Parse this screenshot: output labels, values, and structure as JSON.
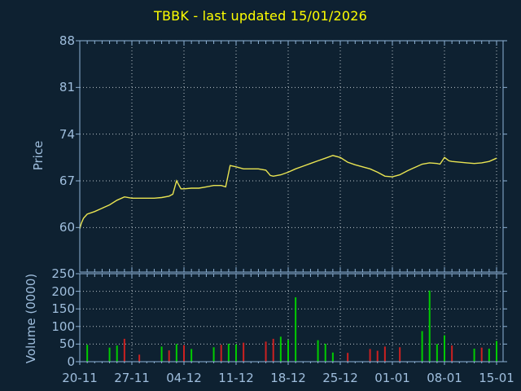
{
  "title": "TBBK - last updated 15/01/2026",
  "colors": {
    "background": "#0e2131",
    "title_text": "#ffff00",
    "axis": "#8fb3d6",
    "tick_text": "#9fbedd",
    "grid": "#b9c2c9",
    "price_line": "#e9e452",
    "volume_up": "#00cc00",
    "volume_down": "#cc2121"
  },
  "chart_data": [
    {
      "type": "line",
      "name": "price",
      "title": "TBBK - last updated 15/01/2026",
      "ylabel": "Price",
      "ylim": [
        53,
        88
      ],
      "yticks": [
        88,
        81,
        74,
        67,
        60
      ],
      "xtick_labels": [
        "20-11",
        "27-11",
        "04-12",
        "11-12",
        "18-12",
        "25-12",
        "01-01",
        "08-01",
        "15-01"
      ],
      "xtick_days": [
        0,
        7,
        14,
        21,
        28,
        35,
        42,
        49,
        56
      ],
      "grid": "dotted",
      "legend": "none",
      "points": [
        [
          0,
          59.8
        ],
        [
          0.2,
          60.6
        ],
        [
          0.5,
          61.4
        ],
        [
          1,
          62.0
        ],
        [
          2,
          62.4
        ],
        [
          3,
          62.9
        ],
        [
          4,
          63.4
        ],
        [
          5,
          64.1
        ],
        [
          6,
          64.6
        ],
        [
          7,
          64.4
        ],
        [
          8,
          64.4
        ],
        [
          9,
          64.4
        ],
        [
          10,
          64.4
        ],
        [
          11,
          64.5
        ],
        [
          12,
          64.7
        ],
        [
          12.5,
          65.0
        ],
        [
          13,
          67.0
        ],
        [
          13.6,
          65.8
        ],
        [
          14,
          65.8
        ],
        [
          15,
          65.9
        ],
        [
          16,
          65.9
        ],
        [
          17,
          66.1
        ],
        [
          18,
          66.3
        ],
        [
          19,
          66.3
        ],
        [
          19.6,
          66.1
        ],
        [
          20.2,
          69.3
        ],
        [
          21,
          69.1
        ],
        [
          22,
          68.8
        ],
        [
          23,
          68.8
        ],
        [
          24,
          68.8
        ],
        [
          25,
          68.6
        ],
        [
          25.6,
          67.8
        ],
        [
          26,
          67.7
        ],
        [
          27,
          67.9
        ],
        [
          28,
          68.3
        ],
        [
          29,
          68.8
        ],
        [
          30,
          69.2
        ],
        [
          31,
          69.6
        ],
        [
          32,
          70.0
        ],
        [
          33,
          70.4
        ],
        [
          34,
          70.8
        ],
        [
          35,
          70.5
        ],
        [
          36,
          69.8
        ],
        [
          37,
          69.4
        ],
        [
          38,
          69.1
        ],
        [
          39,
          68.8
        ],
        [
          40,
          68.3
        ],
        [
          41,
          67.7
        ],
        [
          42,
          67.6
        ],
        [
          43,
          67.9
        ],
        [
          44,
          68.5
        ],
        [
          45,
          69.0
        ],
        [
          46,
          69.5
        ],
        [
          47,
          69.7
        ],
        [
          48,
          69.6
        ],
        [
          48.4,
          69.5
        ],
        [
          49,
          70.5
        ],
        [
          49.6,
          70.0
        ],
        [
          50,
          69.9
        ],
        [
          51,
          69.8
        ],
        [
          52,
          69.7
        ],
        [
          53,
          69.6
        ],
        [
          54,
          69.7
        ],
        [
          55,
          69.9
        ],
        [
          56,
          70.4
        ]
      ]
    },
    {
      "type": "bar",
      "name": "volume",
      "ylabel": "Volume (0000)",
      "ylim": [
        0,
        250
      ],
      "yticks": [
        250,
        200,
        150,
        100,
        50,
        0
      ],
      "grid": "dotted",
      "bars": [
        {
          "d": 1,
          "v": 48,
          "dir": "up"
        },
        {
          "d": 4,
          "v": 40,
          "dir": "up"
        },
        {
          "d": 5,
          "v": 46,
          "dir": "up"
        },
        {
          "d": 6,
          "v": 65,
          "dir": "down"
        },
        {
          "d": 8,
          "v": 20,
          "dir": "down"
        },
        {
          "d": 11,
          "v": 43,
          "dir": "up"
        },
        {
          "d": 12,
          "v": 32,
          "dir": "down"
        },
        {
          "d": 13,
          "v": 50,
          "dir": "up"
        },
        {
          "d": 14,
          "v": 47,
          "dir": "down"
        },
        {
          "d": 15,
          "v": 36,
          "dir": "up"
        },
        {
          "d": 18,
          "v": 41,
          "dir": "up"
        },
        {
          "d": 19,
          "v": 48,
          "dir": "down"
        },
        {
          "d": 20,
          "v": 51,
          "dir": "up"
        },
        {
          "d": 21,
          "v": 49,
          "dir": "up"
        },
        {
          "d": 22,
          "v": 54,
          "dir": "down"
        },
        {
          "d": 25,
          "v": 57,
          "dir": "down"
        },
        {
          "d": 26,
          "v": 65,
          "dir": "down"
        },
        {
          "d": 27,
          "v": 71,
          "dir": "up"
        },
        {
          "d": 28,
          "v": 62,
          "dir": "up"
        },
        {
          "d": 29,
          "v": 183,
          "dir": "up"
        },
        {
          "d": 32,
          "v": 61,
          "dir": "up"
        },
        {
          "d": 33,
          "v": 51,
          "dir": "up"
        },
        {
          "d": 34,
          "v": 26,
          "dir": "up"
        },
        {
          "d": 36,
          "v": 25,
          "dir": "down"
        },
        {
          "d": 39,
          "v": 36,
          "dir": "down"
        },
        {
          "d": 40,
          "v": 31,
          "dir": "down"
        },
        {
          "d": 41,
          "v": 43,
          "dir": "down"
        },
        {
          "d": 43,
          "v": 41,
          "dir": "down"
        },
        {
          "d": 46,
          "v": 87,
          "dir": "up"
        },
        {
          "d": 47,
          "v": 202,
          "dir": "up"
        },
        {
          "d": 48,
          "v": 50,
          "dir": "up"
        },
        {
          "d": 49,
          "v": 75,
          "dir": "up"
        },
        {
          "d": 50,
          "v": 46,
          "dir": "down"
        },
        {
          "d": 53,
          "v": 37,
          "dir": "up"
        },
        {
          "d": 54,
          "v": 40,
          "dir": "down"
        },
        {
          "d": 55,
          "v": 37,
          "dir": "up"
        },
        {
          "d": 56,
          "v": 59,
          "dir": "up"
        }
      ]
    }
  ]
}
